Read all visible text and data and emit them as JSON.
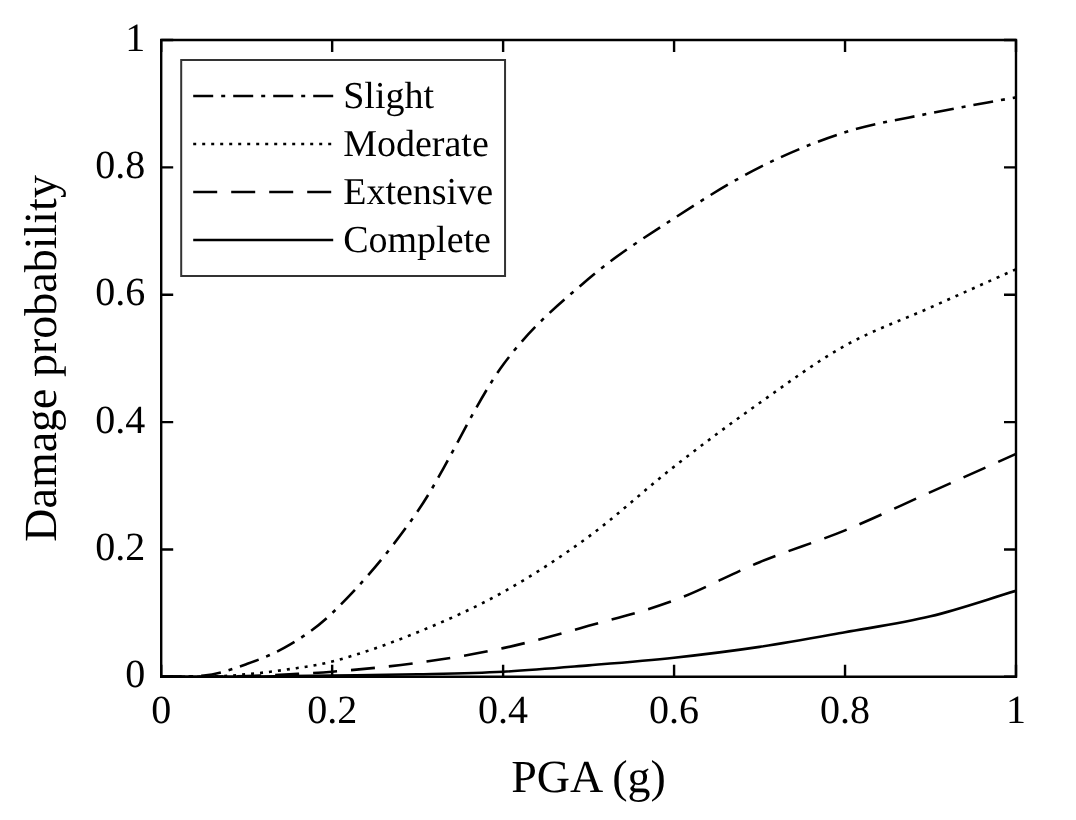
{
  "chart_data": {
    "type": "line",
    "xlabel": "PGA (g)",
    "ylabel": "Damage probability",
    "x": [
      0,
      0.05,
      0.1,
      0.15,
      0.2,
      0.3,
      0.4,
      0.5,
      0.6,
      0.7,
      0.8,
      0.9,
      1
    ],
    "xlim": [
      0,
      1
    ],
    "xticks": [
      0,
      0.2,
      0.4,
      0.6,
      0.8,
      1
    ],
    "ylim": [
      0,
      1
    ],
    "yticks": [
      0,
      0.2,
      0.4,
      0.6,
      0.8,
      1
    ],
    "grid": false,
    "legend": "top left",
    "marker": "none",
    "series": [
      {
        "name": "Slight",
        "color": "#000000",
        "line_style": "dashdot",
        "values": [
          0,
          0.002,
          0.02,
          0.05,
          0.1,
          0.26,
          0.49,
          0.625,
          0.72,
          0.8,
          0.855,
          0.885,
          0.91
        ]
      },
      {
        "name": "Moderate",
        "color": "#000000",
        "line_style": "dotted",
        "values": [
          0,
          0,
          0.004,
          0.012,
          0.024,
          0.07,
          0.133,
          0.22,
          0.33,
          0.43,
          0.52,
          0.58,
          0.64
        ]
      },
      {
        "name": "Extensive",
        "color": "#000000",
        "line_style": "dashed",
        "values": [
          0,
          0,
          0.001,
          0.004,
          0.008,
          0.022,
          0.045,
          0.08,
          0.12,
          0.18,
          0.23,
          0.29,
          0.35
        ]
      },
      {
        "name": "Complete",
        "color": "#000000",
        "line_style": "solid",
        "values": [
          0,
          0,
          0,
          0.001,
          0.002,
          0.004,
          0.008,
          0.018,
          0.03,
          0.047,
          0.07,
          0.095,
          0.135
        ]
      }
    ]
  }
}
